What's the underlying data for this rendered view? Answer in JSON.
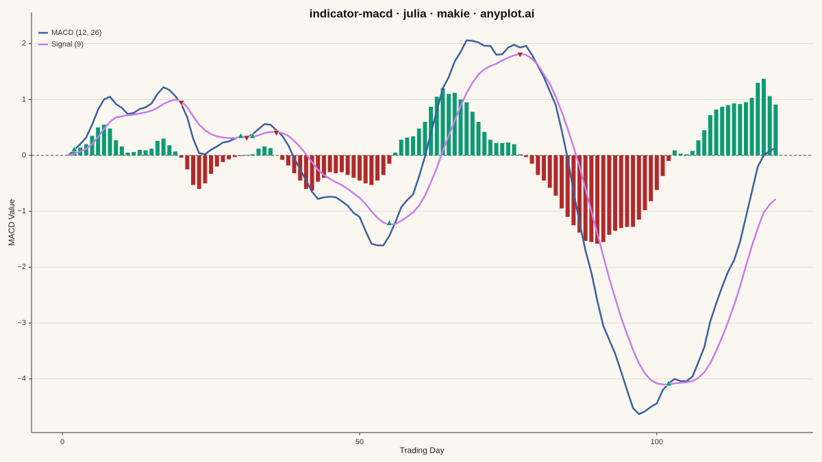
{
  "chart_data": {
    "type": "line",
    "title": "indicator-macd · julia · makie · anyplot.ai",
    "xlabel": "Trading Day",
    "ylabel": "MACD Value",
    "xlim": [
      -5.2,
      126.3
    ],
    "ylim": [
      -4.96,
      2.56
    ],
    "xticks": [
      0,
      50,
      100
    ],
    "yticks": [
      {
        "value": -4,
        "label": "−4"
      },
      {
        "value": -3,
        "label": "−3"
      },
      {
        "value": -2,
        "label": "−2"
      },
      {
        "value": -1,
        "label": "−1"
      },
      0,
      1,
      2
    ],
    "grid": true,
    "hline": 0,
    "legend": "top-left",
    "x": [
      1,
      2,
      3,
      4,
      5,
      6,
      7,
      8,
      9,
      10,
      11,
      12,
      13,
      14,
      15,
      16,
      17,
      18,
      19,
      20,
      21,
      22,
      23,
      24,
      25,
      26,
      27,
      28,
      29,
      30,
      31,
      32,
      33,
      34,
      35,
      36,
      37,
      38,
      39,
      40,
      41,
      42,
      43,
      44,
      45,
      46,
      47,
      48,
      49,
      50,
      51,
      52,
      53,
      54,
      55,
      56,
      57,
      58,
      59,
      60,
      61,
      62,
      63,
      64,
      65,
      66,
      67,
      68,
      69,
      70,
      71,
      72,
      73,
      74,
      75,
      76,
      77,
      78,
      79,
      80,
      81,
      82,
      83,
      84,
      85,
      86,
      87,
      88,
      89,
      90,
      91,
      92,
      93,
      94,
      95,
      96,
      97,
      98,
      99,
      100,
      101,
      102,
      103,
      104,
      105,
      106,
      107,
      108,
      109,
      110,
      111,
      112,
      113,
      114,
      115,
      116,
      117,
      118,
      119,
      120
    ],
    "series": [
      {
        "name": "MACD (12, 26)",
        "color": "#3b5f9e",
        "values": [
          0,
          0.1,
          0.2,
          0.32,
          0.55,
          0.82,
          1.0,
          1.05,
          0.92,
          0.85,
          0.74,
          0.76,
          0.83,
          0.86,
          0.93,
          1.1,
          1.22,
          1.17,
          1.06,
          0.92,
          0.68,
          0.3,
          0.04,
          0.02,
          0.1,
          0.16,
          0.23,
          0.25,
          0.3,
          0.34,
          0.32,
          0.38,
          0.47,
          0.56,
          0.55,
          0.45,
          0.35,
          0.18,
          -0.05,
          -0.25,
          -0.45,
          -0.65,
          -0.78,
          -0.75,
          -0.74,
          -0.75,
          -0.82,
          -0.9,
          -1.03,
          -1.1,
          -1.35,
          -1.58,
          -1.61,
          -1.61,
          -1.44,
          -1.2,
          -0.93,
          -0.8,
          -0.7,
          -0.38,
          -0.02,
          0.4,
          0.8,
          1.2,
          1.4,
          1.68,
          1.85,
          2.06,
          2.05,
          2.02,
          1.96,
          1.96,
          1.8,
          1.81,
          1.93,
          1.98,
          1.93,
          1.96,
          1.8,
          1.6,
          1.4,
          1.15,
          0.9,
          0.45,
          -0.05,
          -0.65,
          -1.2,
          -1.7,
          -2.1,
          -2.6,
          -3.05,
          -3.3,
          -3.55,
          -3.87,
          -4.2,
          -4.52,
          -4.63,
          -4.58,
          -4.5,
          -4.44,
          -4.2,
          -4.08,
          -4.0,
          -4.04,
          -4.04,
          -3.96,
          -3.7,
          -3.43,
          -2.97,
          -2.65,
          -2.35,
          -2.08,
          -1.88,
          -1.55,
          -1.1,
          -0.65,
          -0.2,
          0.0,
          0.08,
          0.13
        ]
      },
      {
        "name": "Signal (9)",
        "color": "#c77ded",
        "values": [
          0,
          0.03,
          0.07,
          0.12,
          0.2,
          0.33,
          0.47,
          0.6,
          0.68,
          0.7,
          0.72,
          0.73,
          0.75,
          0.77,
          0.8,
          0.85,
          0.92,
          0.97,
          1.0,
          0.97,
          0.86,
          0.7,
          0.55,
          0.45,
          0.38,
          0.34,
          0.32,
          0.31,
          0.31,
          0.32,
          0.32,
          0.33,
          0.36,
          0.4,
          0.42,
          0.42,
          0.4,
          0.35,
          0.26,
          0.15,
          0.02,
          -0.12,
          -0.26,
          -0.35,
          -0.42,
          -0.48,
          -0.53,
          -0.6,
          -0.68,
          -0.76,
          -0.87,
          -1.0,
          -1.12,
          -1.2,
          -1.24,
          -1.23,
          -1.17,
          -1.1,
          -1.02,
          -0.9,
          -0.72,
          -0.48,
          -0.22,
          0.08,
          0.35,
          0.62,
          0.88,
          1.12,
          1.3,
          1.45,
          1.54,
          1.6,
          1.64,
          1.7,
          1.75,
          1.79,
          1.81,
          1.8,
          1.73,
          1.62,
          1.45,
          1.28,
          1.05,
          0.78,
          0.48,
          0.15,
          -0.2,
          -0.6,
          -1.0,
          -1.4,
          -1.8,
          -2.2,
          -2.55,
          -2.9,
          -3.2,
          -3.48,
          -3.72,
          -3.9,
          -4.02,
          -4.08,
          -4.1,
          -4.1,
          -4.08,
          -4.07,
          -4.06,
          -4.04,
          -3.98,
          -3.88,
          -3.72,
          -3.5,
          -3.25,
          -2.98,
          -2.68,
          -2.35,
          -1.98,
          -1.62,
          -1.3,
          -1.02,
          -0.88,
          -0.78
        ]
      }
    ],
    "histogram": {
      "positive_color": "#0e9a73",
      "negative_color": "#b02a2a",
      "values": [
        0.01,
        0.1,
        0.14,
        0.2,
        0.35,
        0.5,
        0.55,
        0.48,
        0.27,
        0.16,
        0.05,
        0.06,
        0.1,
        0.09,
        0.12,
        0.26,
        0.3,
        0.18,
        0.07,
        -0.04,
        -0.25,
        -0.53,
        -0.6,
        -0.5,
        -0.33,
        -0.2,
        -0.12,
        -0.07,
        -0.03,
        -0.01,
        0.01,
        0.02,
        0.12,
        0.16,
        0.13,
        0,
        -0.08,
        -0.18,
        -0.32,
        -0.45,
        -0.6,
        -0.63,
        -0.47,
        -0.4,
        -0.3,
        -0.32,
        -0.3,
        -0.35,
        -0.4,
        -0.45,
        -0.5,
        -0.53,
        -0.45,
        -0.35,
        -0.15,
        0.05,
        0.28,
        0.32,
        0.34,
        0.48,
        0.6,
        0.87,
        1.05,
        1.2,
        1.1,
        1.12,
        1.0,
        0.95,
        0.78,
        0.6,
        0.42,
        0.28,
        0.22,
        0.22,
        0.23,
        0.2,
        0.02,
        -0.03,
        -0.15,
        -0.35,
        -0.45,
        -0.58,
        -0.72,
        -0.95,
        -1.1,
        -1.25,
        -1.38,
        -1.53,
        -1.55,
        -1.58,
        -1.55,
        -1.42,
        -1.35,
        -1.3,
        -1.28,
        -1.28,
        -1.15,
        -0.98,
        -0.82,
        -0.62,
        -0.37,
        -0.1,
        0.09,
        0.03,
        0.02,
        0.08,
        0.27,
        0.45,
        0.72,
        0.82,
        0.87,
        0.9,
        0.93,
        0.92,
        0.95,
        1.03,
        1.3,
        1.37,
        1.06,
        0.91
      ]
    },
    "bullish_crossovers": {
      "color": "#0e9a73",
      "x": [
        2,
        30,
        32,
        55,
        102
      ],
      "y": [
        0.11,
        0.35,
        0.35,
        -1.21,
        -4.08
      ]
    },
    "bearish_crossovers": {
      "color": "#b02a2a",
      "x": [
        20,
        31,
        36,
        77
      ],
      "y": [
        0.94,
        0.31,
        0.4,
        1.8
      ]
    }
  }
}
